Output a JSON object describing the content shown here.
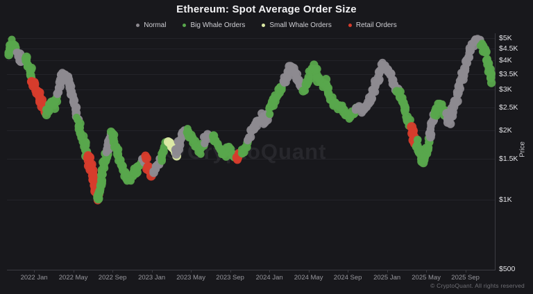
{
  "header": {
    "title": "Ethereum: Spot Average Order Size"
  },
  "legend": [
    {
      "key": "n",
      "label": "Normal",
      "color": "#8d8a90"
    },
    {
      "key": "bw",
      "label": "Big Whale Orders",
      "color": "#58a74c"
    },
    {
      "key": "sw",
      "label": "Small Whale Orders",
      "color": "#dbe9a4"
    },
    {
      "key": "r",
      "label": "Retail Orders",
      "color": "#d63c2c"
    }
  ],
  "watermark": {
    "text": "CryptoQuant"
  },
  "footer": {
    "copyright": "© CryptoQuant. All rights reserved"
  },
  "chart_data": {
    "type": "scatter",
    "title": "Ethereum: Spot Average Order Size",
    "xlabel": "",
    "ylabel": "Price",
    "y_scale": "log",
    "y_range": [
      500,
      5000
    ],
    "grid": "horizontal",
    "legend_position": "top",
    "y_ticks": [
      {
        "label": "$5K",
        "value": 5000
      },
      {
        "label": "$4.5K",
        "value": 4500
      },
      {
        "label": "$4K",
        "value": 4000
      },
      {
        "label": "$3.5K",
        "value": 3500
      },
      {
        "label": "$3K",
        "value": 3000
      },
      {
        "label": "$2.5K",
        "value": 2500
      },
      {
        "label": "$2K",
        "value": 2000
      },
      {
        "label": "$1.5K",
        "value": 1500
      },
      {
        "label": "$1K",
        "value": 1000
      },
      {
        "label": "$500",
        "value": 500
      }
    ],
    "x_unit": "months_since_2021-12",
    "x_ticks": [
      {
        "label": "2022 Jan",
        "m": 1
      },
      {
        "label": "2022 May",
        "m": 5
      },
      {
        "label": "2022 Sep",
        "m": 9
      },
      {
        "label": "2023 Jan",
        "m": 13
      },
      {
        "label": "2023 May",
        "m": 17
      },
      {
        "label": "2023 Sep",
        "m": 21
      },
      {
        "label": "2024 Jan",
        "m": 25
      },
      {
        "label": "2024 May",
        "m": 29
      },
      {
        "label": "2024 Sep",
        "m": 33
      },
      {
        "label": "2025 Jan",
        "m": 37
      },
      {
        "label": "2025 May",
        "m": 41
      },
      {
        "label": "2025 Sep",
        "m": 45
      }
    ],
    "point_format": [
      "month_offset",
      "price_usd",
      "order_size_class"
    ],
    "points": [
      [
        -1.6,
        4220,
        "bw"
      ],
      [
        -1.2,
        4800,
        "bw"
      ],
      [
        -0.8,
        4340,
        "bw"
      ],
      [
        -0.35,
        3990,
        "n"
      ],
      [
        0.07,
        4160,
        "n"
      ],
      [
        0.5,
        3750,
        "bw"
      ],
      [
        0.85,
        3370,
        "bw"
      ],
      [
        1.2,
        3030,
        "r"
      ],
      [
        1.56,
        2770,
        "r"
      ],
      [
        1.9,
        2550,
        "r"
      ],
      [
        2.27,
        2380,
        "r"
      ],
      [
        2.6,
        2640,
        "bw"
      ],
      [
        3.04,
        2550,
        "bw"
      ],
      [
        3.4,
        2830,
        "bw"
      ],
      [
        3.75,
        3320,
        "n"
      ],
      [
        4.1,
        3570,
        "n"
      ],
      [
        4.46,
        3320,
        "n"
      ],
      [
        4.8,
        2930,
        "n"
      ],
      [
        5.17,
        2550,
        "n"
      ],
      [
        5.45,
        2210,
        "n"
      ],
      [
        5.73,
        1990,
        "bw"
      ],
      [
        6.1,
        1790,
        "bw"
      ],
      [
        6.44,
        1540,
        "bw"
      ],
      [
        6.73,
        1390,
        "r"
      ],
      [
        7.0,
        1230,
        "r"
      ],
      [
        7.3,
        1120,
        "r"
      ],
      [
        7.57,
        1000,
        "r"
      ],
      [
        7.86,
        1200,
        "bw"
      ],
      [
        8.14,
        1440,
        "bw"
      ],
      [
        8.42,
        1620,
        "bw"
      ],
      [
        8.7,
        1860,
        "n"
      ],
      [
        9.0,
        1920,
        "n"
      ],
      [
        9.27,
        1730,
        "bw"
      ],
      [
        9.56,
        1560,
        "bw"
      ],
      [
        9.9,
        1440,
        "bw"
      ],
      [
        10.27,
        1300,
        "bw"
      ],
      [
        10.7,
        1220,
        "bw"
      ],
      [
        11.1,
        1260,
        "bw"
      ],
      [
        11.54,
        1390,
        "bw"
      ],
      [
        12.0,
        1460,
        "bw"
      ],
      [
        12.4,
        1480,
        "n"
      ],
      [
        12.8,
        1370,
        "r"
      ],
      [
        13.17,
        1300,
        "r"
      ],
      [
        13.5,
        1410,
        "n"
      ],
      [
        13.88,
        1510,
        "n"
      ],
      [
        14.3,
        1670,
        "bw"
      ],
      [
        14.7,
        1760,
        "bw"
      ],
      [
        15.15,
        1670,
        "sw"
      ],
      [
        15.5,
        1560,
        "sw"
      ],
      [
        15.86,
        1790,
        "n"
      ],
      [
        16.2,
        1990,
        "n"
      ],
      [
        16.64,
        2030,
        "n"
      ],
      [
        17.06,
        1860,
        "bw"
      ],
      [
        17.5,
        1730,
        "bw"
      ],
      [
        17.9,
        1620,
        "bw"
      ],
      [
        18.34,
        1790,
        "bw"
      ],
      [
        18.76,
        1920,
        "n"
      ],
      [
        19.2,
        1900,
        "n"
      ],
      [
        19.6,
        1730,
        "bw"
      ],
      [
        20.0,
        1650,
        "bw"
      ],
      [
        20.46,
        1580,
        "bw"
      ],
      [
        20.9,
        1650,
        "bw"
      ],
      [
        21.3,
        1540,
        "bw"
      ],
      [
        21.73,
        1510,
        "bw"
      ],
      [
        22.16,
        1580,
        "r"
      ],
      [
        22.5,
        1670,
        "bw"
      ],
      [
        22.87,
        1790,
        "bw"
      ],
      [
        23.3,
        1990,
        "n"
      ],
      [
        23.7,
        2180,
        "n"
      ],
      [
        24.14,
        2290,
        "n"
      ],
      [
        24.57,
        2180,
        "n"
      ],
      [
        25.0,
        2380,
        "n"
      ],
      [
        25.35,
        2580,
        "bw"
      ],
      [
        25.7,
        2770,
        "bw"
      ],
      [
        26.05,
        2970,
        "bw"
      ],
      [
        26.4,
        3180,
        "bw"
      ],
      [
        26.76,
        3420,
        "n"
      ],
      [
        27.1,
        3750,
        "n"
      ],
      [
        27.47,
        3620,
        "n"
      ],
      [
        27.8,
        3320,
        "n"
      ],
      [
        28.18,
        3090,
        "n"
      ],
      [
        28.53,
        2970,
        "n"
      ],
      [
        28.88,
        3180,
        "bw"
      ],
      [
        29.24,
        3620,
        "bw"
      ],
      [
        29.6,
        3750,
        "bw"
      ],
      [
        29.94,
        3420,
        "bw"
      ],
      [
        30.3,
        3140,
        "bw"
      ],
      [
        30.65,
        3250,
        "bw"
      ],
      [
        31.0,
        2930,
        "bw"
      ],
      [
        31.36,
        2730,
        "bw"
      ],
      [
        31.7,
        2580,
        "bw"
      ],
      [
        32.07,
        2460,
        "bw"
      ],
      [
        32.42,
        2550,
        "bw"
      ],
      [
        32.78,
        2380,
        "bw"
      ],
      [
        33.13,
        2250,
        "bw"
      ],
      [
        33.49,
        2340,
        "bw"
      ],
      [
        33.84,
        2460,
        "bw"
      ],
      [
        34.2,
        2550,
        "n"
      ],
      [
        34.55,
        2410,
        "n"
      ],
      [
        34.9,
        2510,
        "n"
      ],
      [
        35.26,
        2690,
        "n"
      ],
      [
        35.6,
        2970,
        "n"
      ],
      [
        35.96,
        3250,
        "n"
      ],
      [
        36.3,
        3620,
        "n"
      ],
      [
        36.67,
        3900,
        "n"
      ],
      [
        37.0,
        3720,
        "n"
      ],
      [
        37.38,
        3420,
        "n"
      ],
      [
        37.73,
        3180,
        "n"
      ],
      [
        38.1,
        2930,
        "n"
      ],
      [
        38.44,
        2730,
        "bw"
      ],
      [
        38.8,
        2460,
        "bw"
      ],
      [
        39.15,
        2180,
        "bw"
      ],
      [
        39.43,
        2030,
        "bw"
      ],
      [
        39.7,
        1900,
        "r"
      ],
      [
        40.0,
        1790,
        "r"
      ],
      [
        40.2,
        1650,
        "bw"
      ],
      [
        40.5,
        1510,
        "bw"
      ],
      [
        40.78,
        1460,
        "bw"
      ],
      [
        41.06,
        1620,
        "bw"
      ],
      [
        41.35,
        1860,
        "bw"
      ],
      [
        41.63,
        2130,
        "n"
      ],
      [
        41.9,
        2340,
        "n"
      ],
      [
        42.2,
        2510,
        "bw"
      ],
      [
        42.48,
        2580,
        "bw"
      ],
      [
        42.76,
        2460,
        "bw"
      ],
      [
        43.04,
        2290,
        "bw"
      ],
      [
        43.33,
        2180,
        "n"
      ],
      [
        43.6,
        2380,
        "n"
      ],
      [
        43.9,
        2580,
        "n"
      ],
      [
        44.17,
        2830,
        "n"
      ],
      [
        44.46,
        3140,
        "n"
      ],
      [
        44.74,
        3490,
        "n"
      ],
      [
        45.03,
        3880,
        "n"
      ],
      [
        45.3,
        4220,
        "n"
      ],
      [
        45.6,
        4530,
        "n"
      ],
      [
        45.95,
        4800,
        "n"
      ],
      [
        46.3,
        4870,
        "n"
      ],
      [
        46.66,
        4730,
        "n"
      ],
      [
        46.94,
        4400,
        "bw"
      ],
      [
        47.22,
        4020,
        "bw"
      ],
      [
        47.43,
        3670,
        "bw"
      ],
      [
        47.65,
        3370,
        "bw"
      ],
      [
        47.86,
        3240,
        "bw"
      ]
    ]
  }
}
